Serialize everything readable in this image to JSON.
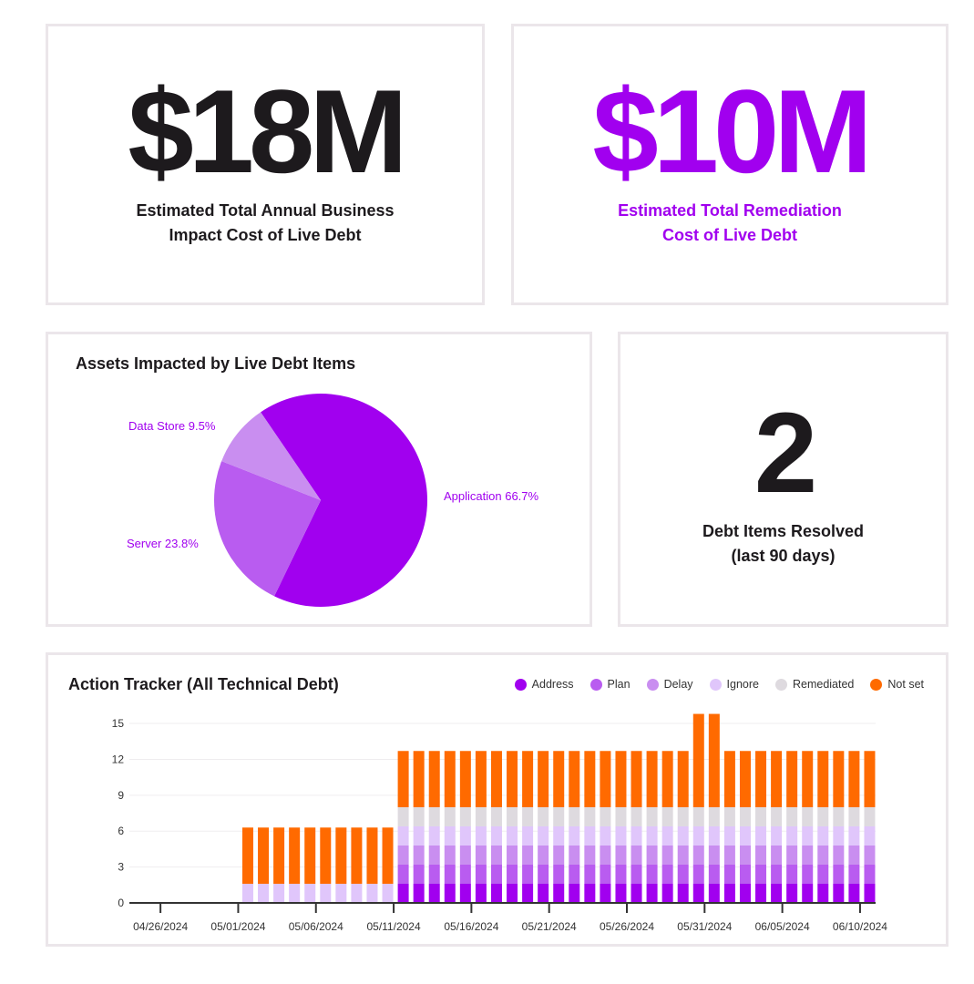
{
  "kpi_business_impact": {
    "value": "$18M",
    "label_line1": "Estimated Total Annual Business",
    "label_line2": "Impact Cost of Live Debt"
  },
  "kpi_remediation": {
    "value": "$10M",
    "label_line1": "Estimated Total Remediation",
    "label_line2": "Cost of Live Debt",
    "color": "#a100ef"
  },
  "kpi_resolved": {
    "value": "2",
    "label_line1": "Debt Items Resolved",
    "label_line2": "(last 90 days)"
  },
  "chart_data": [
    {
      "type": "pie",
      "title": "Assets Impacted by Live Debt Items",
      "slices": [
        {
          "label": "Application 66.7%",
          "name": "Application",
          "value": 66.7,
          "color": "#a100ef"
        },
        {
          "label": "Server 23.8%",
          "name": "Server",
          "value": 23.8,
          "color": "#b95cf0"
        },
        {
          "label": "Data Store 9.5%",
          "name": "Data Store",
          "value": 9.5,
          "color": "#c98ef0"
        }
      ]
    },
    {
      "type": "bar",
      "stacked": true,
      "title": "Action Tracker (All Technical Debt)",
      "legend_position": "top-right",
      "ylim": [
        0,
        15.8
      ],
      "yticks": [
        "0",
        "3",
        "6",
        "9",
        "12",
        "15"
      ],
      "xlim": [
        "04/24/2024",
        "06/11/2024"
      ],
      "xticks": [
        "04/26/2024",
        "05/01/2024",
        "05/06/2024",
        "05/11/2024",
        "05/16/2024",
        "05/21/2024",
        "05/26/2024",
        "05/31/2024",
        "06/05/2024",
        "06/10/2024"
      ],
      "grid": true,
      "categories": [
        "05/01/2024",
        "05/02/2024",
        "05/03/2024",
        "05/04/2024",
        "05/05/2024",
        "05/06/2024",
        "05/07/2024",
        "05/08/2024",
        "05/09/2024",
        "05/10/2024",
        "05/11/2024",
        "05/12/2024",
        "05/13/2024",
        "05/14/2024",
        "05/15/2024",
        "05/16/2024",
        "05/17/2024",
        "05/18/2024",
        "05/19/2024",
        "05/20/2024",
        "05/21/2024",
        "05/22/2024",
        "05/23/2024",
        "05/24/2024",
        "05/25/2024",
        "05/26/2024",
        "05/27/2024",
        "05/28/2024",
        "05/29/2024",
        "05/30/2024",
        "05/31/2024",
        "06/01/2024",
        "06/02/2024",
        "06/03/2024",
        "06/04/2024",
        "06/05/2024",
        "06/06/2024",
        "06/07/2024",
        "06/08/2024",
        "06/09/2024",
        "06/10/2024"
      ],
      "series": [
        {
          "name": "Address",
          "color": "#a100ef",
          "values": [
            0,
            0,
            0,
            0,
            0,
            0,
            0,
            0,
            0,
            0,
            1.6,
            1.6,
            1.6,
            1.6,
            1.6,
            1.6,
            1.6,
            1.6,
            1.6,
            1.6,
            1.6,
            1.6,
            1.6,
            1.6,
            1.6,
            1.6,
            1.6,
            1.6,
            1.6,
            1.6,
            1.6,
            1.6,
            1.6,
            1.6,
            1.6,
            1.6,
            1.6,
            1.6,
            1.6,
            1.6,
            1.6
          ]
        },
        {
          "name": "Plan",
          "color": "#b95cf0",
          "values": [
            0,
            0,
            0,
            0,
            0,
            0,
            0,
            0,
            0,
            0,
            1.6,
            1.6,
            1.6,
            1.6,
            1.6,
            1.6,
            1.6,
            1.6,
            1.6,
            1.6,
            1.6,
            1.6,
            1.6,
            1.6,
            1.6,
            1.6,
            1.6,
            1.6,
            1.6,
            1.6,
            1.6,
            1.6,
            1.6,
            1.6,
            1.6,
            1.6,
            1.6,
            1.6,
            1.6,
            1.6,
            1.6
          ]
        },
        {
          "name": "Delay",
          "color": "#c98ef0",
          "values": [
            0,
            0,
            0,
            0,
            0,
            0,
            0,
            0,
            0,
            0,
            1.6,
            1.6,
            1.6,
            1.6,
            1.6,
            1.6,
            1.6,
            1.6,
            1.6,
            1.6,
            1.6,
            1.6,
            1.6,
            1.6,
            1.6,
            1.6,
            1.6,
            1.6,
            1.6,
            1.6,
            1.6,
            1.6,
            1.6,
            1.6,
            1.6,
            1.6,
            1.6,
            1.6,
            1.6,
            1.6,
            1.6
          ]
        },
        {
          "name": "Ignore",
          "color": "#e0c6fb",
          "values": [
            1.6,
            1.6,
            1.6,
            1.6,
            1.6,
            1.6,
            1.6,
            1.6,
            1.6,
            1.6,
            1.6,
            1.6,
            1.6,
            1.6,
            1.6,
            1.6,
            1.6,
            1.6,
            1.6,
            1.6,
            1.6,
            1.6,
            1.6,
            1.6,
            1.6,
            1.6,
            1.6,
            1.6,
            1.6,
            1.6,
            1.6,
            1.6,
            1.6,
            1.6,
            1.6,
            1.6,
            1.6,
            1.6,
            1.6,
            1.6,
            1.6
          ]
        },
        {
          "name": "Remediated",
          "color": "#dedadf",
          "values": [
            0,
            0,
            0,
            0,
            0,
            0,
            0,
            0,
            0,
            0,
            1.6,
            1.6,
            1.6,
            1.6,
            1.6,
            1.6,
            1.6,
            1.6,
            1.6,
            1.6,
            1.6,
            1.6,
            1.6,
            1.6,
            1.6,
            1.6,
            1.6,
            1.6,
            1.6,
            1.6,
            1.6,
            1.6,
            1.6,
            1.6,
            1.6,
            1.6,
            1.6,
            1.6,
            1.6,
            1.6,
            1.6
          ]
        },
        {
          "name": "Not set",
          "color": "#ff6a00",
          "values": [
            4.7,
            4.7,
            4.7,
            4.7,
            4.7,
            4.7,
            4.7,
            4.7,
            4.7,
            4.7,
            4.7,
            4.7,
            4.7,
            4.7,
            4.7,
            4.7,
            4.7,
            4.7,
            4.7,
            4.7,
            4.7,
            4.7,
            4.7,
            4.7,
            4.7,
            4.7,
            4.7,
            4.7,
            4.7,
            7.8,
            7.8,
            4.7,
            4.7,
            4.7,
            4.7,
            4.7,
            4.7,
            4.7,
            4.7,
            4.7,
            4.7
          ]
        }
      ]
    }
  ]
}
